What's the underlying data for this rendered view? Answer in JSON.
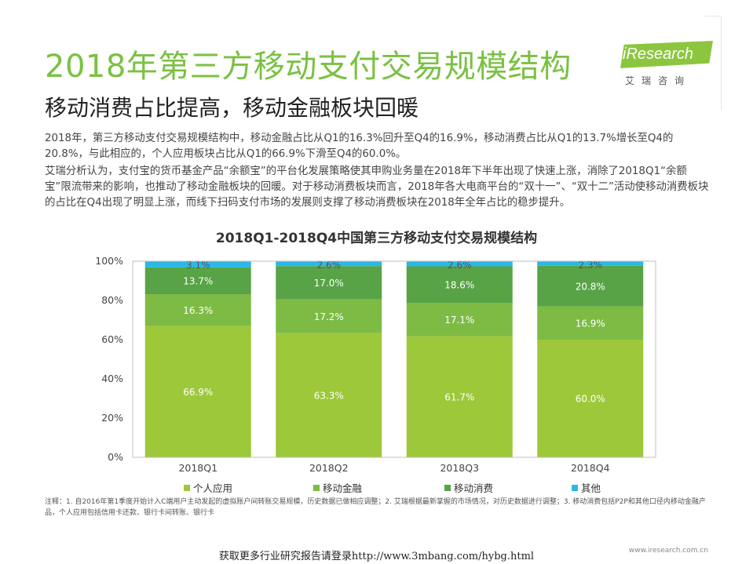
{
  "header": {
    "title": "2018年第三方移动支付交易规模结构",
    "subtitle": "移动消费占比提高，移动金融板块回暖"
  },
  "logo": {
    "brand": "iResearch",
    "sub": "艾瑞咨询"
  },
  "body": {
    "para1": "2018年，第三方移动支付交易规模结构中，移动金融占比从Q1的16.3%回升至Q4的16.9%，移动消费占比从Q1的13.7%增长至Q4的20.8%，与此相应的，个人应用板块占比从Q1的66.9%下滑至Q4的60.0%。",
    "para2": "艾瑞分析认为，支付宝的货币基金产品“余额宝”的平台化发展策略使其申购业务量在2018年下半年出现了快速上涨，消除了2018Q1“余额宝”限流带来的影响，也推动了移动金融板块的回暖。对于移动消费板块而言，2018年各大电商平台的“双十一”、“双十二”活动使移动消费板块的占比在Q4出现了明显上涨，而线下扫码支付市场的发展则支撑了移动消费板块在2018年全年占比的稳步提升。"
  },
  "chart_data": {
    "type": "bar",
    "stacked": true,
    "title": "2018Q1-2018Q4中国第三方移动支付交易规模结构",
    "categories": [
      "2018Q1",
      "2018Q2",
      "2018Q3",
      "2018Q4"
    ],
    "y_ticks": [
      "0%",
      "20%",
      "40%",
      "60%",
      "80%",
      "100%"
    ],
    "ylim": [
      0,
      100
    ],
    "grid": false,
    "legend_position": "bottom",
    "series": [
      {
        "name": "个人应用",
        "color": "#9dc83a",
        "values": [
          66.9,
          63.3,
          61.7,
          60.0
        ]
      },
      {
        "name": "移动金融",
        "color": "#7dbb45",
        "values": [
          16.3,
          17.2,
          17.1,
          16.9
        ]
      },
      {
        "name": "移动消费",
        "color": "#58a346",
        "values": [
          13.7,
          17.0,
          18.6,
          20.8
        ]
      },
      {
        "name": "其他",
        "color": "#2bb8e6",
        "values": [
          3.1,
          2.6,
          2.6,
          2.3
        ]
      }
    ],
    "labels": [
      [
        "66.9%",
        "63.3%",
        "61.7%",
        "60.0%"
      ],
      [
        "16.3%",
        "17.2%",
        "17.1%",
        "16.9%"
      ],
      [
        "13.7%",
        "17.0%",
        "18.6%",
        "20.8%"
      ],
      [
        "3.1%",
        "2.6%",
        "2.6%",
        "2.3%"
      ]
    ]
  },
  "notes": {
    "text": "注释：1. 自2016年第1季度开始计入C端用户主动发起的虚拟账户间转账交易规模，历史数据已做相应调整；2. 艾瑞根据最新掌握的市场情况，对历史数据进行调整；3. 移动消费包括P2P和其他口径内移动金融产品，个人应用包括信用卡还款、银行卡间转账、银行卡",
    "source_url": "www.iresearch.com.cn"
  },
  "footer": {
    "text": "获取更多行业研究报告请登录http://www.3mbang.com/hybg.html"
  }
}
